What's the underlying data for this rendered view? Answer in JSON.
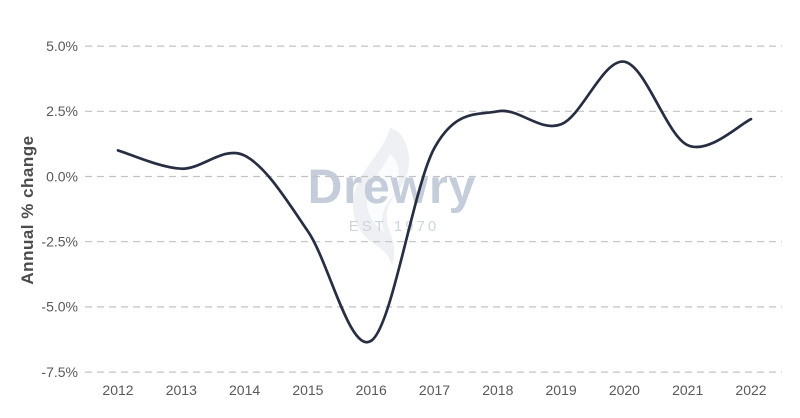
{
  "chart_data": {
    "type": "line",
    "title": "",
    "x": [
      2012,
      2013,
      2014,
      2015,
      2016,
      2017,
      2018,
      2019,
      2020,
      2021,
      2022
    ],
    "x_tick_labels": [
      "2012",
      "2013",
      "2014",
      "2015",
      "2016",
      "2017",
      "2018",
      "2019",
      "2020",
      "2021",
      "2022"
    ],
    "series": [
      {
        "name": "Annual % change",
        "values": [
          1.0,
          0.3,
          0.8,
          -2.1,
          -6.3,
          1.1,
          2.5,
          2.0,
          4.4,
          1.2,
          2.2
        ]
      }
    ],
    "xlabel": "",
    "ylabel": "Annual % change",
    "ylim": [
      -7.5,
      5.0
    ],
    "yticks": [
      5.0,
      2.5,
      0.0,
      -2.5,
      -5.0,
      -7.5
    ],
    "ytick_labels": [
      "5.0%",
      "2.5%",
      "0.0%",
      "-2.5%",
      "-5.0%",
      "-7.5%"
    ],
    "grid": "horizontal-dashed",
    "legend": "none",
    "line_smoothing": "spline",
    "colors": {
      "line": "#272e42",
      "grid": "#c3c3c3",
      "tick_text": "#595959",
      "axis_title_text": "#4c4c4c"
    }
  },
  "watermark": {
    "logo_text": "Drewry",
    "est_text": "EST 1970",
    "colors": {
      "logo": "#c4cdd9",
      "est": "#ced4dd",
      "flame": "#eef0f4",
      "flame_inner": "#fbfcfd"
    }
  }
}
